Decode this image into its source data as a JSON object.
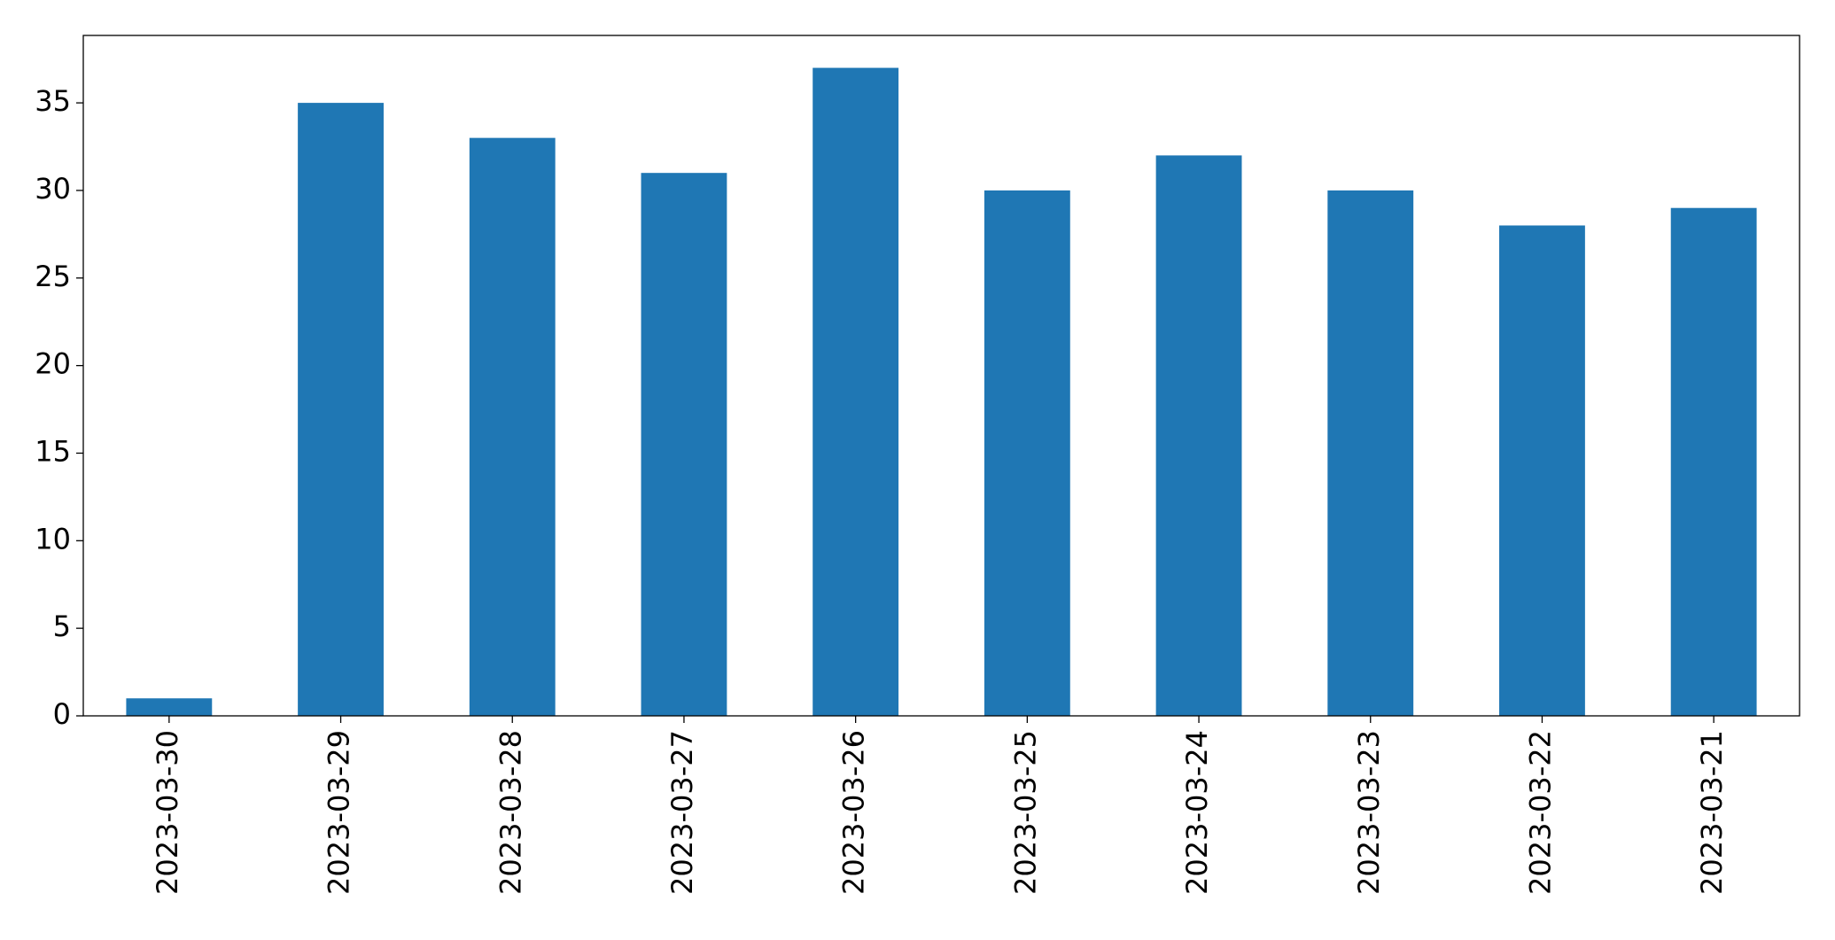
{
  "chart_data": {
    "type": "bar",
    "categories": [
      "2023-03-30",
      "2023-03-29",
      "2023-03-28",
      "2023-03-27",
      "2023-03-26",
      "2023-03-25",
      "2023-03-24",
      "2023-03-23",
      "2023-03-22",
      "2023-03-21"
    ],
    "values": [
      1,
      35,
      33,
      31,
      37,
      30,
      32,
      30,
      28,
      29
    ],
    "color": "#1f77b4",
    "ylim": [
      0,
      38.85
    ],
    "yticks": [
      0,
      5,
      10,
      15,
      20,
      25,
      30,
      35
    ],
    "grid": false
  }
}
